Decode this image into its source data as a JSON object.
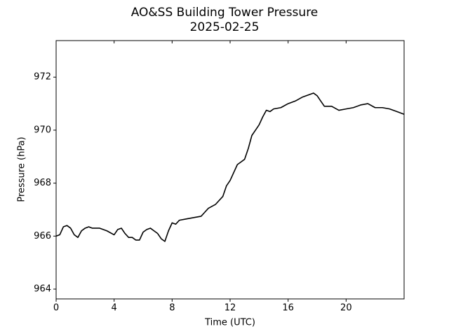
{
  "chart_data": {
    "type": "line",
    "title": "AO&SS Building Tower Pressure",
    "subtitle": "2025-02-25",
    "x_label": "Time (UTC)",
    "y_label": "Pressure (hPa)",
    "color": "#000000",
    "x": [
      0,
      0.25,
      0.5,
      0.75,
      1,
      1.25,
      1.5,
      1.75,
      2,
      2.25,
      2.5,
      3,
      3.5,
      4,
      4.25,
      4.5,
      4.75,
      5,
      5.25,
      5.5,
      5.75,
      6,
      6.25,
      6.5,
      6.75,
      7,
      7.25,
      7.5,
      7.75,
      8,
      8.25,
      8.5,
      9,
      9.5,
      10,
      10.25,
      10.5,
      11,
      11.5,
      11.75,
      12,
      12.25,
      12.5,
      12.75,
      13,
      13.25,
      13.5,
      13.75,
      14,
      14.25,
      14.5,
      14.75,
      15,
      15.5,
      16,
      16.5,
      17,
      17.5,
      17.75,
      18,
      18.25,
      18.5,
      19,
      19.5,
      20,
      20.5,
      21,
      21.5,
      22,
      22.5,
      23,
      23.5,
      24
    ],
    "values": [
      966.0,
      966.05,
      966.35,
      966.4,
      966.3,
      966.05,
      965.95,
      966.2,
      966.3,
      966.35,
      966.3,
      966.3,
      966.2,
      966.05,
      966.25,
      966.3,
      966.1,
      965.95,
      965.95,
      965.85,
      965.85,
      966.15,
      966.25,
      966.3,
      966.2,
      966.1,
      965.9,
      965.8,
      966.2,
      966.5,
      966.45,
      966.6,
      966.65,
      966.7,
      966.75,
      966.9,
      967.05,
      967.2,
      967.5,
      967.9,
      968.1,
      968.4,
      968.7,
      968.8,
      968.9,
      969.3,
      969.8,
      970.0,
      970.2,
      970.5,
      970.75,
      970.7,
      970.8,
      970.85,
      971.0,
      971.1,
      971.25,
      971.35,
      971.4,
      971.3,
      971.1,
      970.9,
      970.9,
      970.75,
      970.8,
      970.85,
      970.95,
      971.0,
      970.85,
      970.85,
      970.8,
      970.7,
      970.6
    ],
    "xlim": [
      0,
      24
    ],
    "xticks": [
      0,
      4,
      8,
      12,
      16,
      20
    ],
    "ylim": [
      963.63,
      973.38
    ],
    "yticks": [
      964,
      966,
      968,
      970,
      972
    ]
  }
}
